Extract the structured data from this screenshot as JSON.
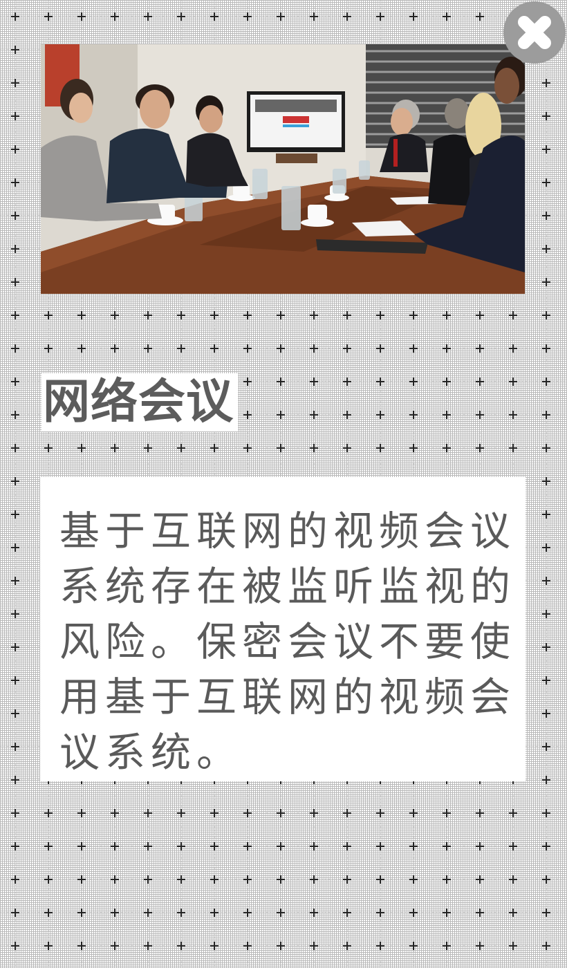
{
  "section": {
    "title": "网络会议",
    "body": "基于互联网的视频会议系统存在被监听监视的风险。保密会议不要使用基于互联网的视频会议系统。"
  },
  "photo": {
    "subject": "business meeting video conference photo"
  },
  "close_button": {
    "icon": "close-icon"
  },
  "colors": {
    "title_text": "#5c5c5c",
    "body_text": "#5a5a5a",
    "grid": "#b9b9b9",
    "close_bg": "#9a9a9a"
  }
}
